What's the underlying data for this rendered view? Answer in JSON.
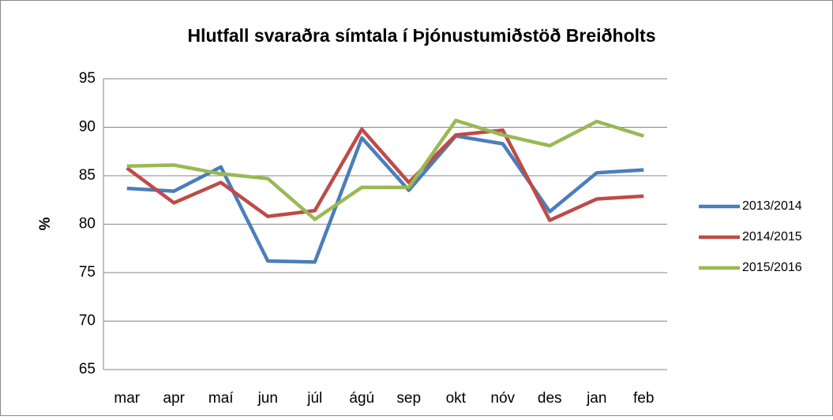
{
  "chart_data": {
    "type": "line",
    "title": "Hlutfall svaraðra símtala í Þjónustumiðstöð Breiðholts",
    "y_label": "%",
    "categories": [
      "mar",
      "apr",
      "maí",
      "jun",
      "júl",
      "ágú",
      "sep",
      "okt",
      "nóv",
      "des",
      "jan",
      "feb"
    ],
    "series": [
      {
        "name": "2013/2014",
        "color": "#4a7ebb",
        "values": [
          83.7,
          83.4,
          85.9,
          76.2,
          76.1,
          88.9,
          83.5,
          89.1,
          88.3,
          81.3,
          85.3,
          85.6
        ]
      },
      {
        "name": "2014/2015",
        "color": "#be4b48",
        "values": [
          85.8,
          82.2,
          84.3,
          80.8,
          81.4,
          89.8,
          84.3,
          89.2,
          89.7,
          80.4,
          82.6,
          82.9
        ]
      },
      {
        "name": "2015/2016",
        "color": "#98b954",
        "values": [
          86.0,
          86.1,
          85.2,
          84.7,
          80.5,
          83.8,
          83.8,
          90.7,
          89.2,
          88.1,
          90.6,
          89.1
        ]
      }
    ],
    "ylim": [
      65,
      95
    ],
    "yticks": [
      65,
      70,
      75,
      80,
      85,
      90,
      95
    ],
    "grid": true,
    "legend": "right"
  }
}
